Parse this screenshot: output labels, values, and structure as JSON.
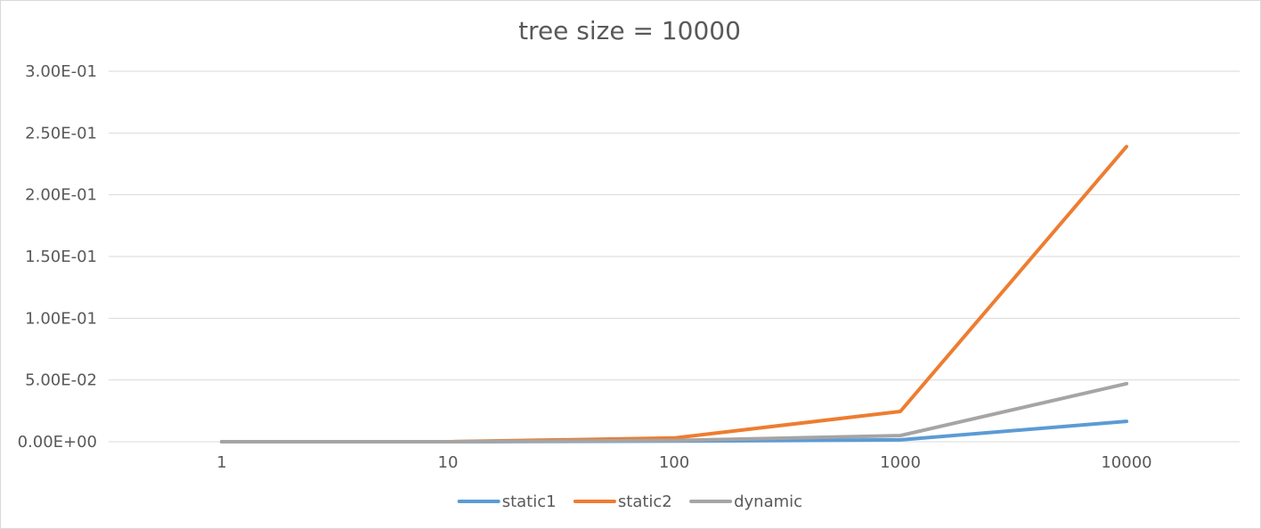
{
  "chart_data": {
    "type": "line",
    "title": "tree size = 10000",
    "xlabel": "",
    "ylabel": "",
    "categories": [
      "1",
      "10",
      "100",
      "1000",
      "10000"
    ],
    "y_ticks": [
      "0.00E+00",
      "5.00E-02",
      "1.00E-01",
      "1.50E-01",
      "2.00E-01",
      "2.50E-01",
      "3.00E-01"
    ],
    "ylim": [
      0,
      0.3
    ],
    "grid": true,
    "legend": "bottom",
    "series": [
      {
        "name": "static1",
        "color": "#5b9bd5",
        "values": [
          0.0,
          0.0,
          0.0005,
          0.0015,
          0.0165
        ]
      },
      {
        "name": "static2",
        "color": "#ed7d31",
        "values": [
          0.0,
          0.0,
          0.003,
          0.0245,
          0.239
        ]
      },
      {
        "name": "dynamic",
        "color": "#a5a5a5",
        "values": [
          0.0,
          0.0,
          0.001,
          0.005,
          0.047
        ]
      }
    ]
  }
}
